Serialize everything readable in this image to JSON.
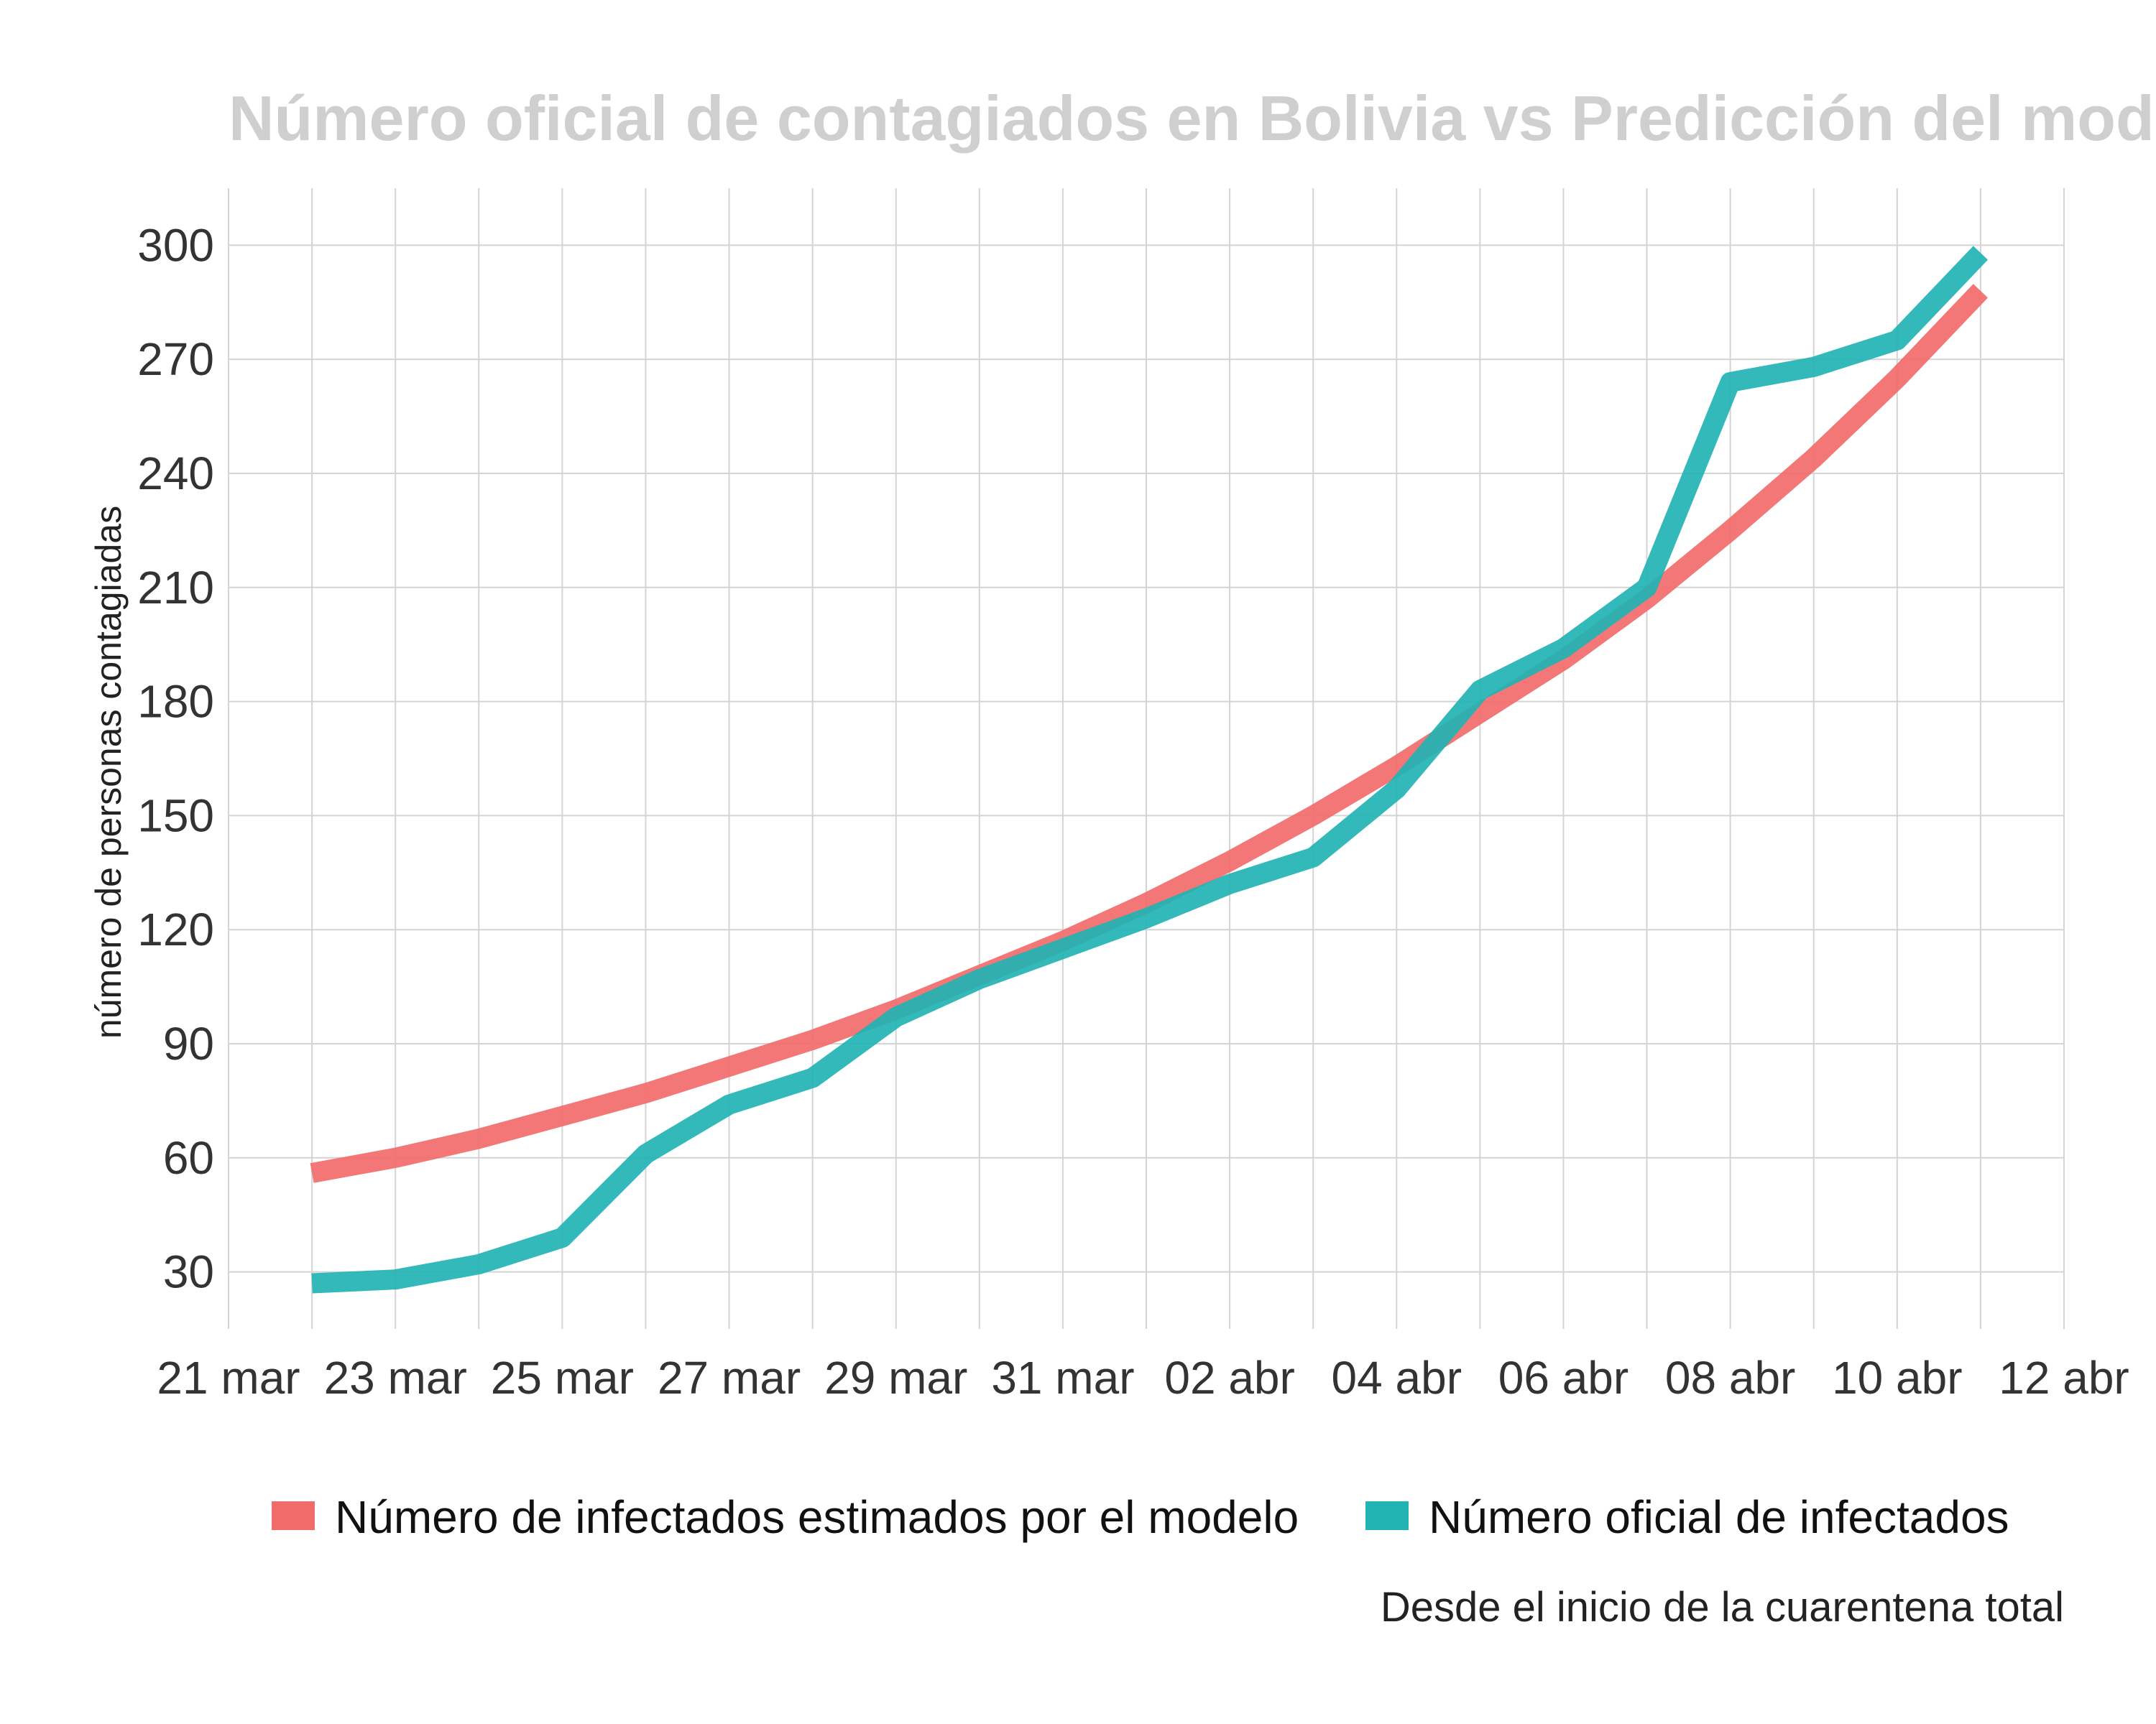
{
  "chart_data": {
    "type": "line",
    "title": "Número oficial de contagiados en Bolivia vs Predicción del mode",
    "ylabel": "número de personas contagiadas",
    "caption": "Desde el inicio de la cuarentena total",
    "xlim": [
      "2020-03-21",
      "2020-04-12"
    ],
    "ylim": [
      15,
      315
    ],
    "x_ticks": [
      {
        "date": "2020-03-21",
        "label": "21 mar"
      },
      {
        "date": "2020-03-23",
        "label": "23 mar"
      },
      {
        "date": "2020-03-25",
        "label": "25 mar"
      },
      {
        "date": "2020-03-27",
        "label": "27 mar"
      },
      {
        "date": "2020-03-29",
        "label": "29 mar"
      },
      {
        "date": "2020-03-31",
        "label": "31 mar"
      },
      {
        "date": "2020-04-02",
        "label": "02 abr"
      },
      {
        "date": "2020-04-04",
        "label": "04 abr"
      },
      {
        "date": "2020-04-06",
        "label": "06 abr"
      },
      {
        "date": "2020-04-08",
        "label": "08 abr"
      },
      {
        "date": "2020-04-10",
        "label": "10 abr"
      },
      {
        "date": "2020-04-12",
        "label": "12 abr"
      }
    ],
    "y_ticks": [
      30,
      60,
      90,
      120,
      150,
      180,
      210,
      240,
      270,
      300
    ],
    "grid": true,
    "legend_position": "bottom",
    "series": [
      {
        "name": "Número de infectados estimados por el modelo",
        "color": "#f26b6b",
        "points": [
          {
            "x": "2020-03-22",
            "y": 56
          },
          {
            "x": "2020-03-23",
            "y": 60
          },
          {
            "x": "2020-03-24",
            "y": 65
          },
          {
            "x": "2020-03-25",
            "y": 71
          },
          {
            "x": "2020-03-26",
            "y": 77
          },
          {
            "x": "2020-03-27",
            "y": 84
          },
          {
            "x": "2020-03-28",
            "y": 91
          },
          {
            "x": "2020-03-29",
            "y": 99
          },
          {
            "x": "2020-03-30",
            "y": 108
          },
          {
            "x": "2020-03-31",
            "y": 117
          },
          {
            "x": "2020-04-01",
            "y": 127
          },
          {
            "x": "2020-04-02",
            "y": 138
          },
          {
            "x": "2020-04-03",
            "y": 150
          },
          {
            "x": "2020-04-04",
            "y": 163
          },
          {
            "x": "2020-04-05",
            "y": 177
          },
          {
            "x": "2020-04-06",
            "y": 191
          },
          {
            "x": "2020-04-07",
            "y": 207
          },
          {
            "x": "2020-04-08",
            "y": 225
          },
          {
            "x": "2020-04-09",
            "y": 244
          },
          {
            "x": "2020-04-10",
            "y": 265
          },
          {
            "x": "2020-04-11",
            "y": 288
          }
        ]
      },
      {
        "name": "Número oficial de infectados",
        "color": "#22b3b3",
        "points": [
          {
            "x": "2020-03-22",
            "y": 27
          },
          {
            "x": "2020-03-23",
            "y": 28
          },
          {
            "x": "2020-03-24",
            "y": 32
          },
          {
            "x": "2020-03-25",
            "y": 39
          },
          {
            "x": "2020-03-26",
            "y": 61
          },
          {
            "x": "2020-03-27",
            "y": 74
          },
          {
            "x": "2020-03-28",
            "y": 81
          },
          {
            "x": "2020-03-29",
            "y": 97
          },
          {
            "x": "2020-03-30",
            "y": 107
          },
          {
            "x": "2020-03-31",
            "y": 115
          },
          {
            "x": "2020-04-01",
            "y": 123
          },
          {
            "x": "2020-04-02",
            "y": 132
          },
          {
            "x": "2020-04-03",
            "y": 139
          },
          {
            "x": "2020-04-04",
            "y": 157
          },
          {
            "x": "2020-04-05",
            "y": 183
          },
          {
            "x": "2020-04-06",
            "y": 194
          },
          {
            "x": "2020-04-07",
            "y": 210
          },
          {
            "x": "2020-04-08",
            "y": 264
          },
          {
            "x": "2020-04-09",
            "y": 268
          },
          {
            "x": "2020-04-10",
            "y": 275
          },
          {
            "x": "2020-04-11",
            "y": 298
          }
        ]
      }
    ]
  }
}
